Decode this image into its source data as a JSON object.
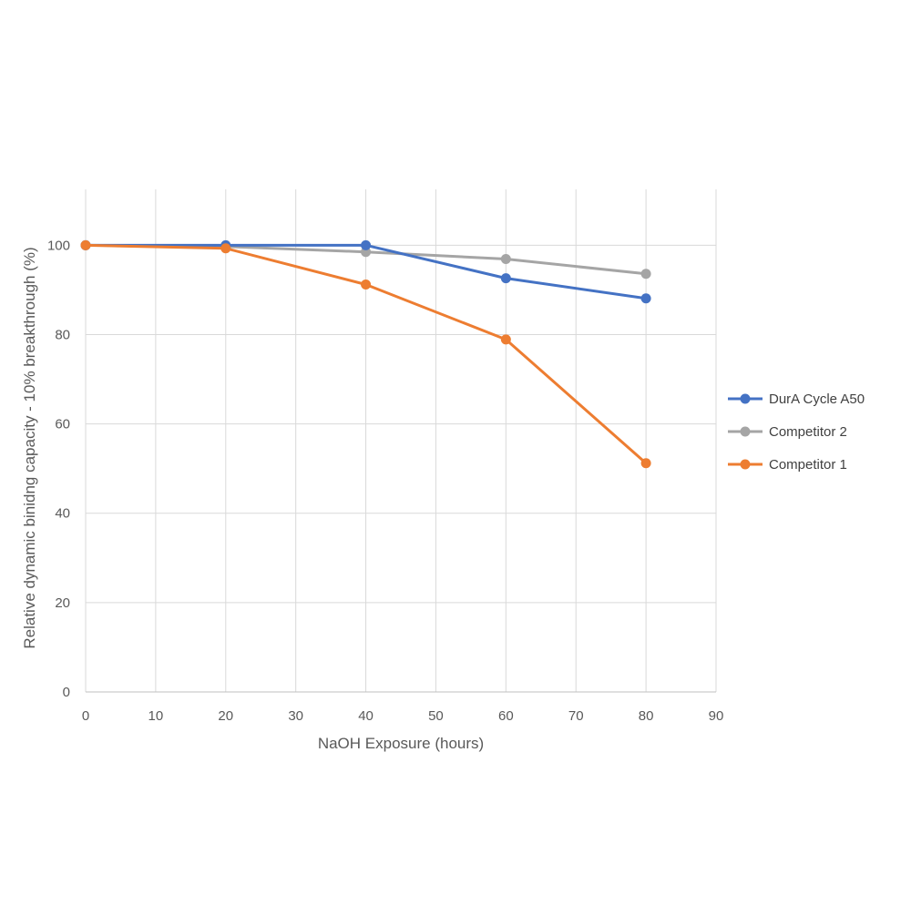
{
  "chart_data": {
    "type": "line",
    "title": "",
    "xlabel": "NaOH Exposure (hours)",
    "ylabel": "Relative dynamic binidng capacity - 10% breakthrough (%)",
    "xlim": [
      0,
      90
    ],
    "ylim": [
      0,
      100
    ],
    "x_ticks": [
      0,
      10,
      20,
      30,
      40,
      50,
      60,
      70,
      80,
      90
    ],
    "y_ticks": [
      0,
      20,
      40,
      60,
      80,
      100
    ],
    "grid": true,
    "legend_position": "right",
    "series": [
      {
        "name": "DurA Cycle A50",
        "color": "#4472c4",
        "x": [
          0,
          20,
          40,
          60,
          80
        ],
        "values": [
          100,
          100,
          100,
          92.6,
          88.1
        ]
      },
      {
        "name": "Competitor 2",
        "color": "#a5a5a5",
        "x": [
          0,
          20,
          40,
          60,
          80
        ],
        "values": [
          100,
          99.7,
          98.5,
          96.9,
          93.6
        ]
      },
      {
        "name": "Competitor 1",
        "color": "#ed7d31",
        "x": [
          0,
          20,
          40,
          60,
          80
        ],
        "values": [
          100,
          99.3,
          91.2,
          78.9,
          51.2
        ]
      }
    ]
  }
}
